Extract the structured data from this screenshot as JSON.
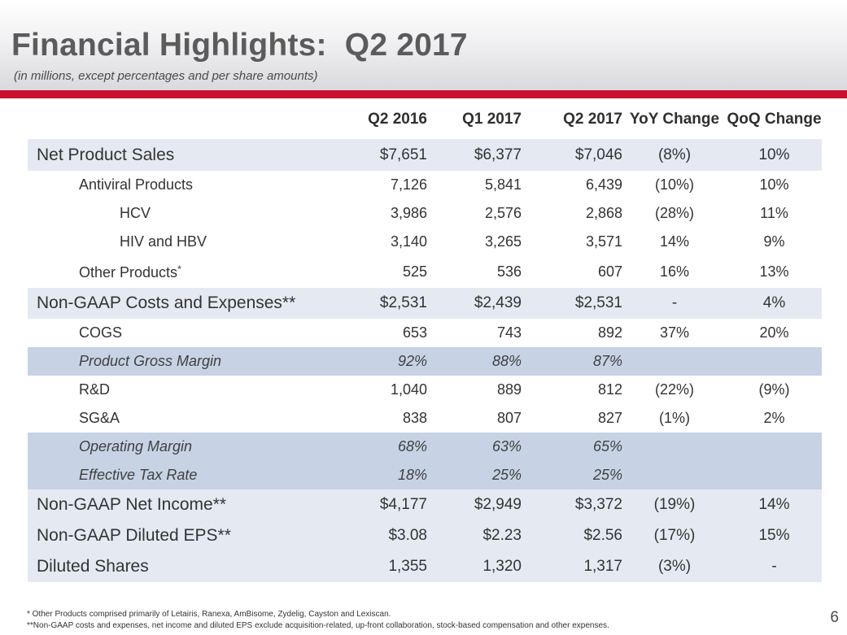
{
  "title": "Financial Highlights:  Q2 2017",
  "subtitle": "(in millions, except percentages and per share amounts)",
  "columns": {
    "q2_2016": "Q2 2016",
    "q1_2017": "Q1 2017",
    "q2_2017": "Q2 2017",
    "yoy": "YoY Change",
    "qoq": "QoQ Change"
  },
  "rows": [
    {
      "label": "Net Product Sales",
      "q2_2016": "$7,651",
      "q1_2017": "$6,377",
      "q2_2017": "$7,046",
      "yoy": "(8%)",
      "qoq": "10%"
    },
    {
      "label": "Antiviral Products",
      "q2_2016": "7,126",
      "q1_2017": "5,841",
      "q2_2017": "6,439",
      "yoy": "(10%)",
      "qoq": "10%"
    },
    {
      "label": "HCV",
      "q2_2016": "3,986",
      "q1_2017": "2,576",
      "q2_2017": "2,868",
      "yoy": "(28%)",
      "qoq": "11%"
    },
    {
      "label": "HIV and HBV",
      "q2_2016": "3,140",
      "q1_2017": "3,265",
      "q2_2017": "3,571",
      "yoy": "14%",
      "qoq": "9%"
    },
    {
      "label": "Other Products",
      "label_mark": "*",
      "q2_2016": "525",
      "q1_2017": "536",
      "q2_2017": "607",
      "yoy": "16%",
      "qoq": "13%"
    },
    {
      "label": "Non-GAAP Costs and Expenses**",
      "q2_2016": "$2,531",
      "q1_2017": "$2,439",
      "q2_2017": "$2,531",
      "yoy": "-",
      "qoq": "4%"
    },
    {
      "label": "COGS",
      "q2_2016": "653",
      "q1_2017": "743",
      "q2_2017": "892",
      "yoy": "37%",
      "qoq": "20%"
    },
    {
      "label": "Product Gross Margin",
      "q2_2016": "92%",
      "q1_2017": "88%",
      "q2_2017": "87%",
      "yoy": "",
      "qoq": ""
    },
    {
      "label": "R&D",
      "q2_2016": "1,040",
      "q1_2017": "889",
      "q2_2017": "812",
      "yoy": "(22%)",
      "qoq": "(9%)"
    },
    {
      "label": "SG&A",
      "q2_2016": "838",
      "q1_2017": "807",
      "q2_2017": "827",
      "yoy": "(1%)",
      "qoq": "2%"
    },
    {
      "label": "Operating Margin",
      "q2_2016": "68%",
      "q1_2017": "63%",
      "q2_2017": "65%",
      "yoy": "",
      "qoq": ""
    },
    {
      "label": "Effective Tax Rate",
      "q2_2016": "18%",
      "q1_2017": "25%",
      "q2_2017": "25%",
      "yoy": "",
      "qoq": ""
    },
    {
      "label": "Non-GAAP Net Income**",
      "q2_2016": "$4,177",
      "q1_2017": "$2,949",
      "q2_2017": "$3,372",
      "yoy": "(19%)",
      "qoq": "14%"
    },
    {
      "label": "Non-GAAP Diluted EPS**",
      "q2_2016": "$3.08",
      "q1_2017": "$2.23",
      "q2_2017": "$2.56",
      "yoy": "(17%)",
      "qoq": "15%"
    },
    {
      "label": "Diluted Shares",
      "q2_2016": "1,355",
      "q1_2017": "1,320",
      "q2_2017": "1,317",
      "yoy": "(3%)",
      "qoq": "-"
    }
  ],
  "footnotes": [
    "* Other Products comprised primarily of Letairis, Ranexa, AmBisome, Zydelig, Cayston and Lexiscan.",
    "**Non-GAAP costs and expenses, net income and diluted EPS exclude acquisition-related, up-front collaboration, stock-based compensation and other expenses."
  ],
  "page_number": "6",
  "colors": {
    "accent_red": "#c8102e",
    "highlight_row": "#e5eaf2",
    "margin_row": "#c7d3e5",
    "title_gray": "#5b5b5b"
  }
}
